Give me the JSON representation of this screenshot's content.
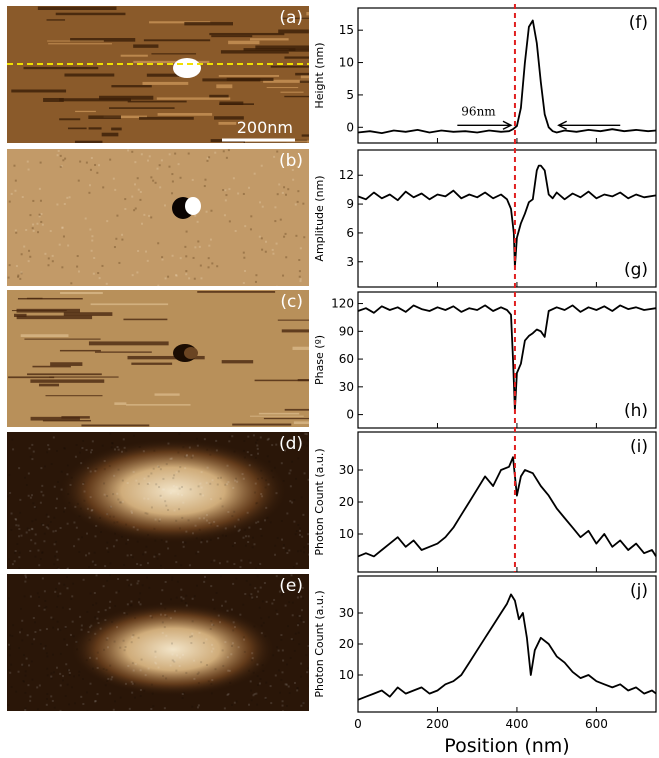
{
  "images": [
    {
      "id": "a",
      "label": "(a)",
      "scale_bar": "200nm",
      "colors": {
        "bg": "#8a5a2a",
        "dark": "#3a1e08",
        "light": "#c89458"
      }
    },
    {
      "id": "b",
      "label": "(b)",
      "colors": {
        "bg": "#c29a68",
        "dark": "#5a3a18",
        "light": "#e8d2b0"
      }
    },
    {
      "id": "c",
      "label": "(c)",
      "colors": {
        "bg": "#b8905a",
        "dark": "#4a2810",
        "light": "#d8b888"
      }
    },
    {
      "id": "d",
      "label": "(d)",
      "colors": {
        "bg": "#2a1608",
        "glow": "#f2e4c8"
      }
    },
    {
      "id": "e",
      "label": "(e)",
      "colors": {
        "bg": "#2a1608",
        "glow": "#f2e4c8"
      }
    }
  ],
  "chart_data": {
    "type": "line",
    "xlabel": "Position (nm)",
    "xlim": [
      0,
      750
    ],
    "xticks": [
      0,
      200,
      400,
      600
    ],
    "marker_x": 395,
    "marker_color": "#e02020",
    "panels": [
      {
        "id": "f",
        "label": "(f)",
        "ylabel": "Height (nm)",
        "ylim": [
          -1.5,
          17.5
        ],
        "yticks": [
          0,
          5,
          10,
          15
        ],
        "annotation": {
          "text": "96nm"
        },
        "series": [
          {
            "x": [
              0,
              30,
              60,
              90,
              120,
              150,
              180,
              210,
              240,
              270,
              300,
              330,
              360,
              380,
              390,
              400,
              410,
              420,
              430,
              440,
              450,
              460,
              470,
              480,
              490,
              500,
              520,
              550,
              580,
              610,
              640,
              670,
              700,
              730,
              750
            ],
            "y": [
              -0.8,
              -0.6,
              -0.9,
              -0.5,
              -0.7,
              -0.4,
              -0.8,
              -0.5,
              -0.7,
              -0.6,
              -0.8,
              -0.5,
              -0.7,
              -0.6,
              -0.3,
              0.2,
              3.0,
              10.0,
              15.5,
              16.5,
              13.0,
              7.0,
              2.0,
              0.0,
              -0.6,
              -0.8,
              -0.5,
              -0.7,
              -0.4,
              -0.6,
              -0.3,
              -0.6,
              -0.4,
              -0.6,
              -0.5
            ]
          }
        ]
      },
      {
        "id": "g",
        "label": "(g)",
        "ylabel": "Amplitude (nm)",
        "ylim": [
          1.0,
          14.0
        ],
        "yticks": [
          3,
          6,
          9,
          12
        ],
        "series": [
          {
            "x": [
              0,
              20,
              40,
              60,
              80,
              100,
              120,
              140,
              160,
              180,
              200,
              220,
              240,
              260,
              280,
              300,
              320,
              340,
              360,
              375,
              385,
              392,
              395,
              400,
              410,
              420,
              430,
              440,
              450,
              455,
              460,
              470,
              480,
              490,
              500,
              520,
              540,
              560,
              580,
              600,
              620,
              640,
              660,
              680,
              700,
              720,
              750
            ],
            "y": [
              9.8,
              9.5,
              10.2,
              9.6,
              10.0,
              9.4,
              10.3,
              9.7,
              10.1,
              9.5,
              10.0,
              9.8,
              10.4,
              9.6,
              10.0,
              9.7,
              10.2,
              9.6,
              10.0,
              9.5,
              8.5,
              6.0,
              2.5,
              5.5,
              7.0,
              8.0,
              9.2,
              9.5,
              12.5,
              13.0,
              13.0,
              12.5,
              10.0,
              9.6,
              10.2,
              9.5,
              10.1,
              9.7,
              10.3,
              9.6,
              10.0,
              9.8,
              10.2,
              9.6,
              10.0,
              9.7,
              9.9
            ]
          }
        ]
      },
      {
        "id": "h",
        "label": "(h)",
        "ylabel": "Phase (º)",
        "ylim": [
          -8,
          126
        ],
        "yticks": [
          0,
          30,
          60,
          90,
          120
        ],
        "series": [
          {
            "x": [
              0,
              20,
              40,
              60,
              80,
              100,
              120,
              140,
              160,
              180,
              200,
              220,
              240,
              260,
              280,
              300,
              320,
              340,
              360,
              375,
              385,
              390,
              395,
              400,
              410,
              420,
              430,
              440,
              450,
              460,
              470,
              480,
              500,
              520,
              540,
              560,
              580,
              600,
              620,
              640,
              660,
              680,
              700,
              720,
              750
            ],
            "y": [
              112,
              115,
              110,
              117,
              113,
              116,
              111,
              118,
              114,
              112,
              116,
              113,
              117,
              111,
              115,
              113,
              118,
              112,
              116,
              113,
              108,
              60,
              5,
              45,
              55,
              80,
              85,
              88,
              92,
              90,
              84,
              112,
              116,
              113,
              118,
              111,
              116,
              113,
              117,
              112,
              118,
              114,
              116,
              113,
              115
            ]
          }
        ]
      },
      {
        "id": "i",
        "label": "(i)",
        "ylabel": "Photon Count (a.u.)",
        "ylim": [
          0,
          40
        ],
        "yticks": [
          10,
          20,
          30
        ],
        "series": [
          {
            "x": [
              0,
              20,
              40,
              60,
              80,
              100,
              120,
              140,
              160,
              180,
              200,
              220,
              240,
              260,
              280,
              300,
              320,
              340,
              360,
              380,
              390,
              400,
              410,
              420,
              440,
              460,
              480,
              500,
              520,
              540,
              560,
              580,
              600,
              620,
              640,
              660,
              680,
              700,
              720,
              740,
              750
            ],
            "y": [
              3,
              4,
              3,
              5,
              7,
              9,
              6,
              8,
              5,
              6,
              7,
              9,
              12,
              16,
              20,
              24,
              28,
              25,
              30,
              31,
              34,
              22,
              28,
              30,
              29,
              25,
              22,
              18,
              15,
              12,
              9,
              11,
              7,
              10,
              6,
              8,
              5,
              7,
              4,
              5,
              3
            ]
          }
        ]
      },
      {
        "id": "j",
        "label": "(j)",
        "ylabel": "Photon Count (a.u.)",
        "ylim": [
          0,
          40
        ],
        "yticks": [
          10,
          20,
          30
        ],
        "series": [
          {
            "x": [
              0,
              20,
              40,
              60,
              80,
              100,
              120,
              140,
              160,
              180,
              200,
              220,
              240,
              260,
              280,
              300,
              320,
              340,
              360,
              375,
              385,
              395,
              405,
              415,
              425,
              435,
              445,
              460,
              480,
              500,
              520,
              540,
              560,
              580,
              600,
              620,
              640,
              660,
              680,
              700,
              720,
              740,
              750
            ],
            "y": [
              2,
              3,
              4,
              5,
              3,
              6,
              4,
              5,
              6,
              4,
              5,
              7,
              8,
              10,
              14,
              18,
              22,
              26,
              30,
              33,
              36,
              34,
              28,
              30,
              22,
              10,
              18,
              22,
              20,
              16,
              14,
              11,
              9,
              10,
              8,
              7,
              6,
              7,
              5,
              6,
              4,
              5,
              4
            ]
          }
        ]
      }
    ]
  }
}
